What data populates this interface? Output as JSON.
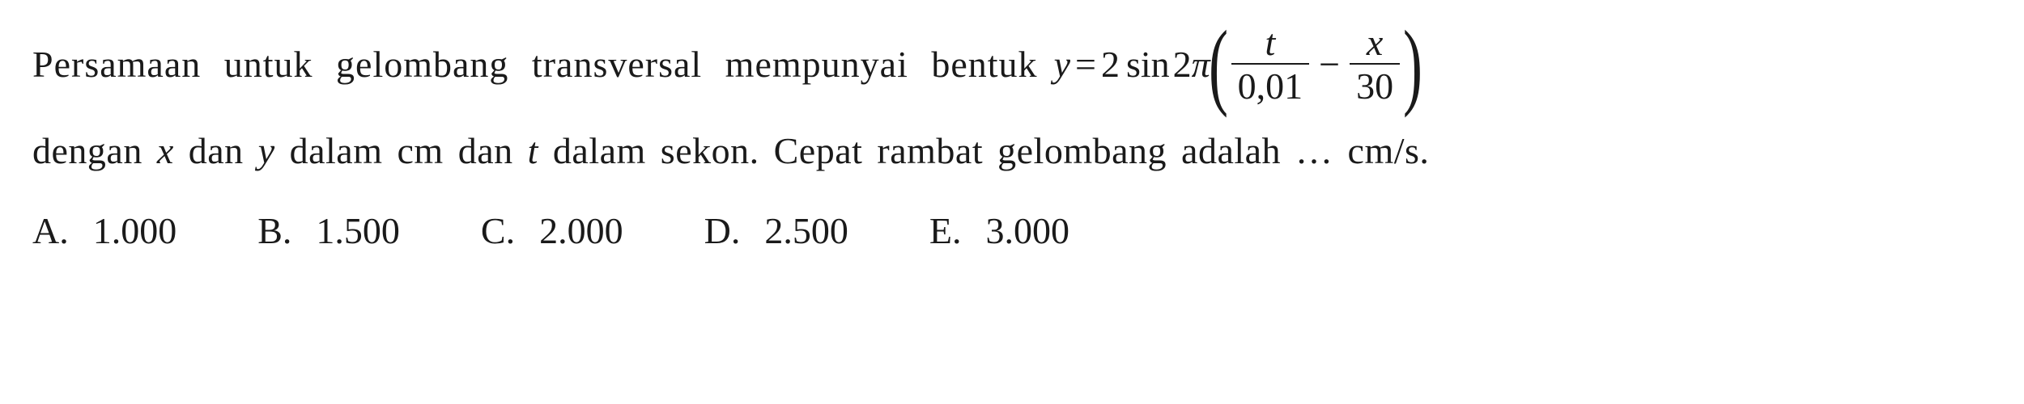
{
  "question": {
    "text_part1": "Persamaan untuk gelombang transversal mempunyai bentuk",
    "eq_y": "y",
    "eq_equals": "=",
    "eq_coef": "2",
    "eq_sin": "sin",
    "eq_2pi_2": "2",
    "eq_2pi_pi": "π",
    "frac1_num": "t",
    "frac1_den": "0,01",
    "eq_minus": "−",
    "frac2_num": "x",
    "frac2_den": "30",
    "text_part2_prefix": "dengan ",
    "var_x": "x",
    "text_part2_mid1": " dan ",
    "var_y": "y",
    "text_part2_mid2": " dalam cm dan ",
    "var_t": "t",
    "text_part2_suffix": " dalam sekon. Cepat rambat gelombang adalah … cm/s."
  },
  "options": [
    {
      "label": "A.",
      "value": "1.000"
    },
    {
      "label": "B.",
      "value": "1.500"
    },
    {
      "label": "C.",
      "value": "2.000"
    },
    {
      "label": "D.",
      "value": "2.500"
    },
    {
      "label": "E.",
      "value": "3.000"
    }
  ],
  "style": {
    "background": "#ffffff",
    "text_color": "#1a1a1a",
    "font_size_body": 46,
    "font_size_paren": 120
  }
}
